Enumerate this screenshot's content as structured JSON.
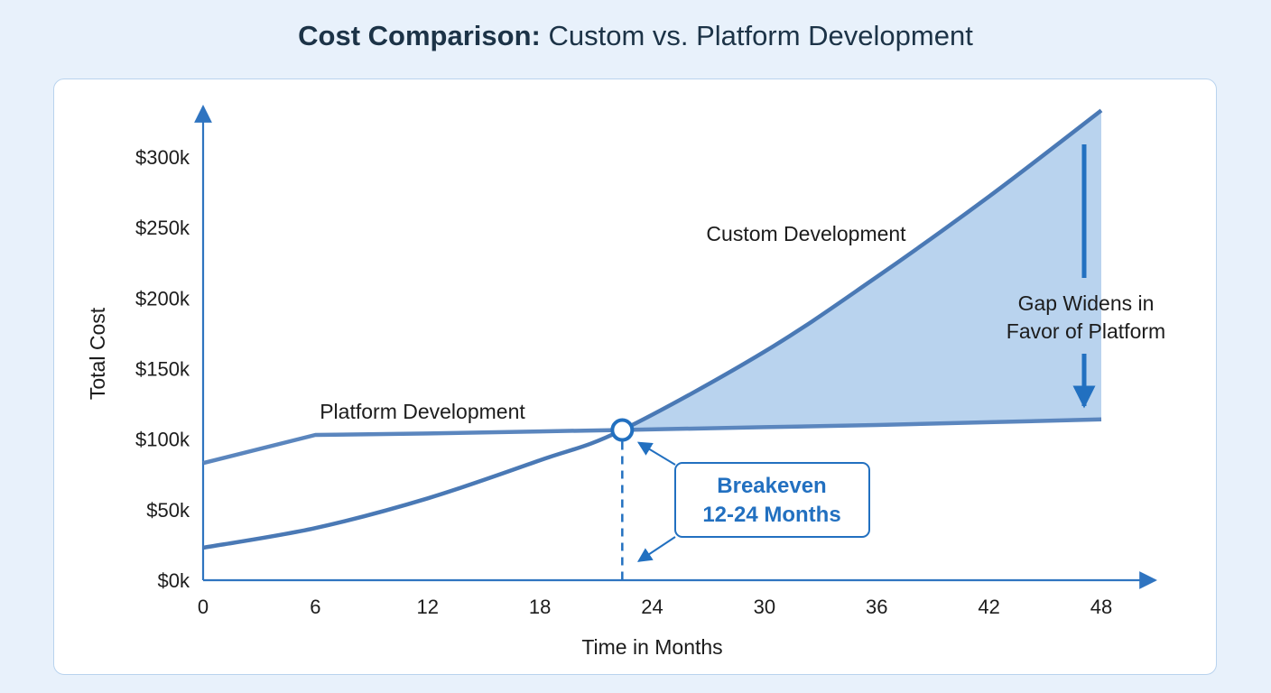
{
  "title": {
    "bold_part": "Cost Comparison:",
    "regular_part": " Custom vs. Platform Development"
  },
  "colors": {
    "axis": "#2f74c0",
    "series_line": "#4a79b5",
    "gap_fill": "#b9d3ee",
    "accent": "#2270c0",
    "text": "#1c1c1c",
    "background": "#e8f1fb"
  },
  "chart_data": {
    "type": "line",
    "title": "Cost Comparison: Custom vs. Platform Development",
    "xlabel": "Time in Months",
    "ylabel": "Total Cost",
    "xlim": [
      0,
      48
    ],
    "ylim": [
      0,
      300000
    ],
    "x_ticks": [
      0,
      6,
      12,
      18,
      24,
      30,
      36,
      42,
      48
    ],
    "y_ticks": [
      0,
      50000,
      100000,
      150000,
      200000,
      250000,
      300000
    ],
    "y_tick_labels": [
      "$0k",
      "$50k",
      "$100k",
      "$150k",
      "$200k",
      "$250k",
      "$300k"
    ],
    "grid": false,
    "series": [
      {
        "name": "Platform Development",
        "x": [
          0,
          6,
          12,
          18,
          22.4,
          30,
          36,
          42,
          48
        ],
        "y": [
          83000,
          103000,
          104000,
          105500,
          106500,
          108500,
          110000,
          112000,
          114000
        ]
      },
      {
        "name": "Custom Development",
        "x": [
          0,
          6,
          12,
          18,
          22.4,
          30,
          36,
          42,
          48
        ],
        "y": [
          23000,
          37000,
          58000,
          85000,
          106500,
          162000,
          215000,
          272000,
          333000
        ]
      }
    ],
    "annotations": {
      "breakeven_x": 22.4,
      "breakeven_y": 106500,
      "breakeven_label_line1": "Breakeven",
      "breakeven_label_line2": "12-24 Months",
      "gap_label_line1": "Gap Widens in",
      "gap_label_line2": "Favor of Platform"
    }
  }
}
